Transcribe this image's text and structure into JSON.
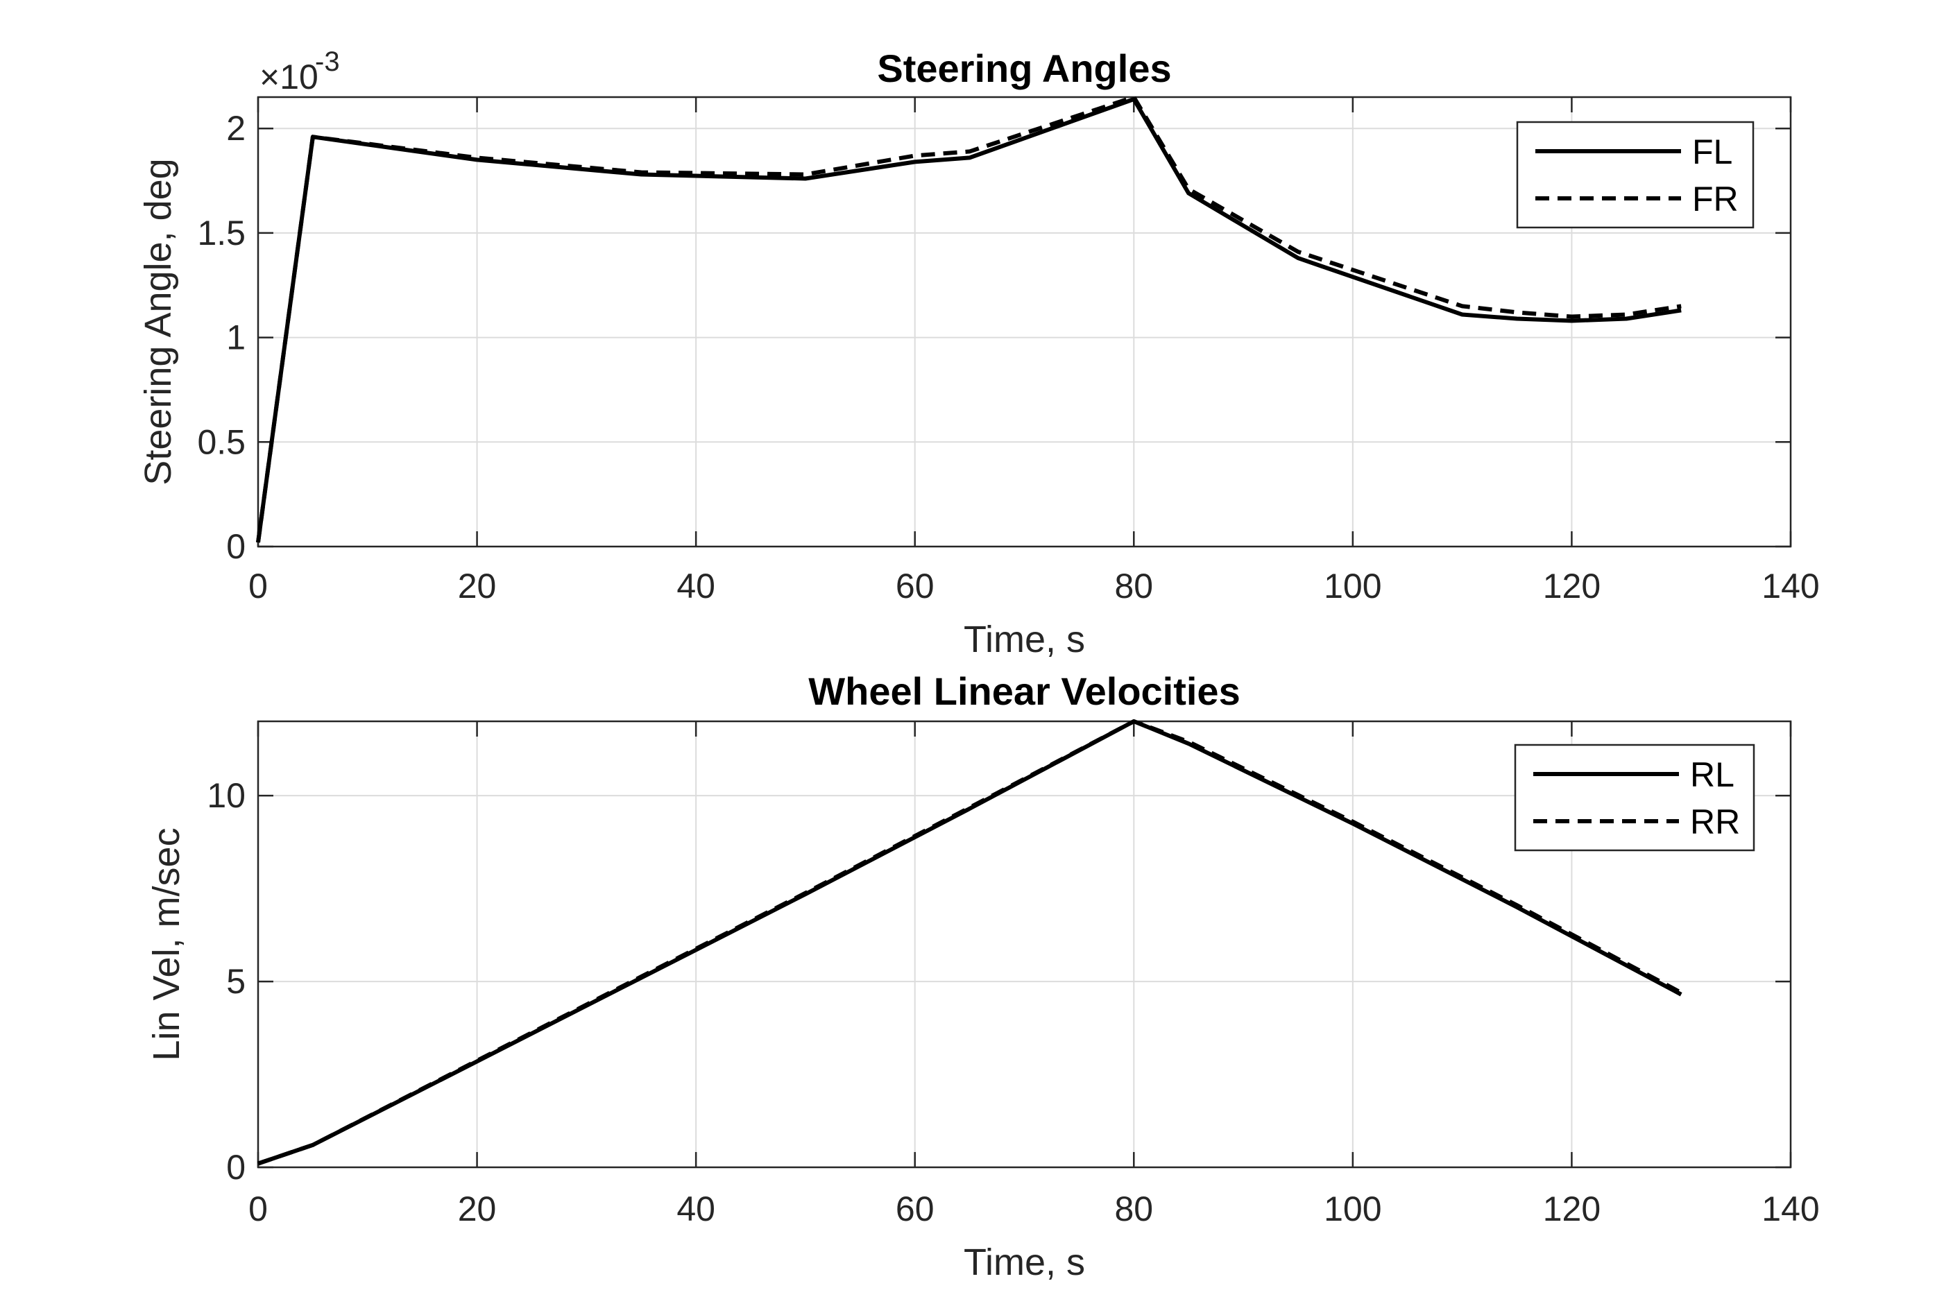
{
  "chart_data": [
    {
      "type": "line",
      "title": "Steering Angles",
      "xlabel": "Time, s",
      "ylabel": "Steering Angle, deg",
      "xlim": [
        0,
        140
      ],
      "ylim": [
        0,
        0.00215
      ],
      "y_exponent_label": "×10",
      "y_exponent_power": "-3",
      "y_scale": 0.001,
      "xticks": [
        0,
        20,
        40,
        60,
        80,
        100,
        120,
        140
      ],
      "xtick_labels": [
        "0",
        "20",
        "40",
        "60",
        "80",
        "100",
        "120",
        "140"
      ],
      "yticks": [
        0,
        0.0005,
        0.001,
        0.0015,
        0.002
      ],
      "ytick_labels": [
        "0",
        "0.5",
        "1",
        "1.5",
        "2"
      ],
      "grid": true,
      "legend_position": "top-right",
      "series": [
        {
          "name": "FL",
          "style": "solid",
          "x": [
            0,
            5,
            20,
            35,
            50,
            60,
            65,
            80,
            85,
            95,
            110,
            115,
            120,
            125,
            130
          ],
          "y": [
            2e-05,
            0.00196,
            0.00185,
            0.00178,
            0.00176,
            0.00184,
            0.00186,
            0.00214,
            0.00169,
            0.00138,
            0.00111,
            0.00109,
            0.00108,
            0.00109,
            0.00113
          ]
        },
        {
          "name": "FR",
          "style": "dashed",
          "x": [
            0,
            5,
            20,
            35,
            50,
            60,
            65,
            80,
            85,
            95,
            110,
            115,
            120,
            125,
            130
          ],
          "y": [
            2e-05,
            0.00196,
            0.00186,
            0.00179,
            0.00178,
            0.00187,
            0.00189,
            0.00215,
            0.00171,
            0.00141,
            0.00115,
            0.00112,
            0.0011,
            0.00111,
            0.00115
          ]
        }
      ]
    },
    {
      "type": "line",
      "title": "Wheel Linear Velocities",
      "xlabel": "Time, s",
      "ylabel": "Lin Vel, m/sec",
      "xlim": [
        0,
        140
      ],
      "ylim": [
        0,
        12
      ],
      "xticks": [
        0,
        20,
        40,
        60,
        80,
        100,
        120,
        140
      ],
      "xtick_labels": [
        "0",
        "20",
        "40",
        "60",
        "80",
        "100",
        "120",
        "140"
      ],
      "yticks": [
        0,
        5,
        10
      ],
      "ytick_labels": [
        "0",
        "5",
        "10"
      ],
      "grid": true,
      "legend_position": "top-right",
      "series": [
        {
          "name": "RL",
          "style": "solid",
          "x": [
            0,
            5,
            20,
            35,
            50,
            65,
            80,
            85,
            100,
            115,
            130
          ],
          "y": [
            0.1,
            0.6,
            2.85,
            5.1,
            7.35,
            9.65,
            12.0,
            11.4,
            9.25,
            7.0,
            4.65
          ]
        },
        {
          "name": "RR",
          "style": "dashed",
          "x": [
            0,
            5,
            20,
            35,
            50,
            65,
            80,
            85,
            100,
            115,
            130
          ],
          "y": [
            0.1,
            0.6,
            2.87,
            5.13,
            7.38,
            9.68,
            12.0,
            11.45,
            9.3,
            7.05,
            4.7
          ]
        }
      ]
    }
  ]
}
